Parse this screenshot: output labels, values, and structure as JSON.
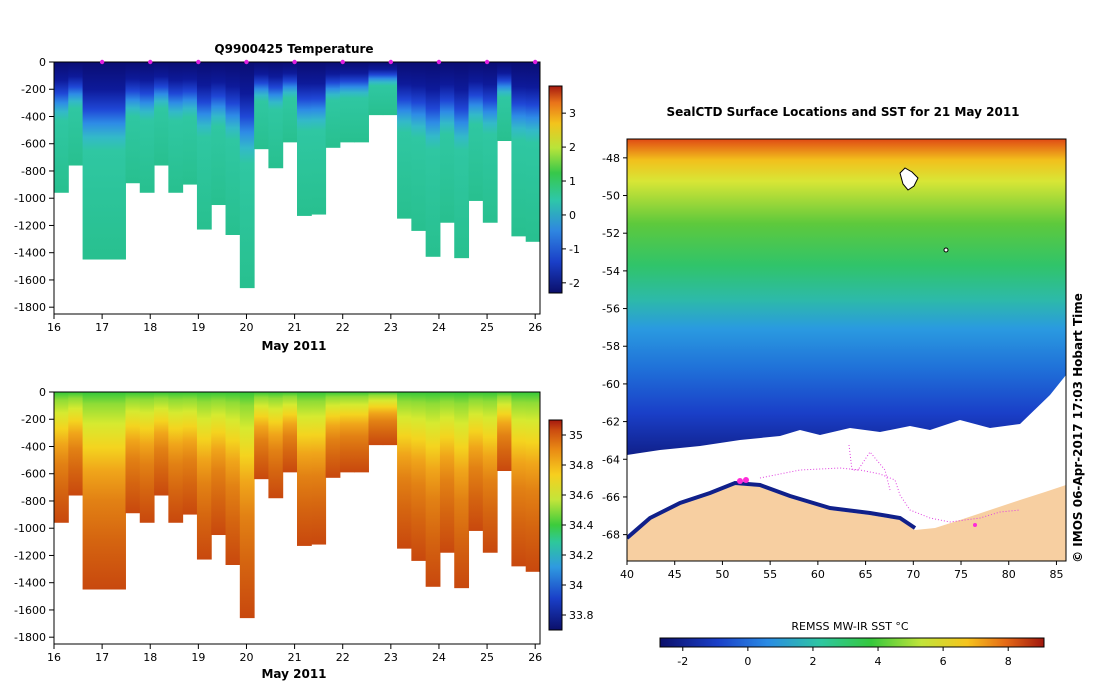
{
  "chart_data": [
    {
      "type": "heatmap",
      "title": "Q9900425  Temperature",
      "xlabel": "May 2011",
      "ylabel": "",
      "xlim": [
        16,
        26.1
      ],
      "ylim": [
        -1850,
        0
      ],
      "x_ticks": [
        "16",
        "17",
        "18",
        "19",
        "20",
        "21",
        "22",
        "23",
        "24",
        "25",
        "26"
      ],
      "y_ticks": [
        "0",
        "-200",
        "-400",
        "-600",
        "-800",
        "-1000",
        "-1200",
        "-1400",
        "-1600",
        "-1800"
      ],
      "profile_markers": [
        17,
        18,
        19,
        20,
        21,
        22,
        23,
        24,
        25,
        26
      ],
      "profile_bottoms": [
        -960,
        -760,
        -1450,
        -1450,
        -1450,
        -890,
        -960,
        -760,
        -960,
        -900,
        -1230,
        -1050,
        -1270,
        -1660,
        -640,
        -780,
        -590,
        -1130,
        -1120,
        -630,
        -590,
        -590,
        -390,
        -390,
        -1150,
        -1240,
        -1430,
        -1180,
        -1440,
        -1020,
        -1180,
        -580,
        -1280,
        -1320
      ],
      "colorbar": {
        "min": -2.3,
        "max": 3.8,
        "ticks": [
          "3",
          "2",
          "1",
          "0",
          "-1",
          "-2"
        ]
      }
    },
    {
      "type": "heatmap",
      "title": "",
      "xlabel": "May 2011",
      "ylabel": "",
      "xlim": [
        16,
        26.1
      ],
      "ylim": [
        -1850,
        0
      ],
      "x_ticks": [
        "16",
        "17",
        "18",
        "19",
        "20",
        "21",
        "22",
        "23",
        "24",
        "25",
        "26"
      ],
      "y_ticks": [
        "0",
        "-200",
        "-400",
        "-600",
        "-800",
        "-1000",
        "-1200",
        "-1400",
        "-1600",
        "-1800"
      ],
      "colorbar": {
        "min": 33.7,
        "max": 35.1,
        "ticks": [
          "35",
          "34.8",
          "34.6",
          "34.4",
          "34.2",
          "34",
          "33.8"
        ]
      }
    },
    {
      "type": "heatmap",
      "title": "SealCTD Surface Locations and SST for 21 May 2011",
      "xlabel": "",
      "ylabel": "",
      "xlim": [
        40,
        86
      ],
      "ylim": [
        -69.4,
        -47
      ],
      "x_ticks": [
        "40",
        "45",
        "50",
        "55",
        "60",
        "65",
        "70",
        "75",
        "80",
        "85"
      ],
      "y_ticks": [
        "-48",
        "-50",
        "-52",
        "-54",
        "-56",
        "-58",
        "-60",
        "-62",
        "-64",
        "-66",
        "-68"
      ],
      "colorbar": {
        "label": "REMSS MW-IR SST °C",
        "min": -2.7,
        "max": 9.1,
        "ticks": [
          "-2",
          "0",
          "2",
          "4",
          "6",
          "8"
        ]
      },
      "credit": "© IMOS 06-Apr-2017 17:03 Hobart Time"
    }
  ]
}
